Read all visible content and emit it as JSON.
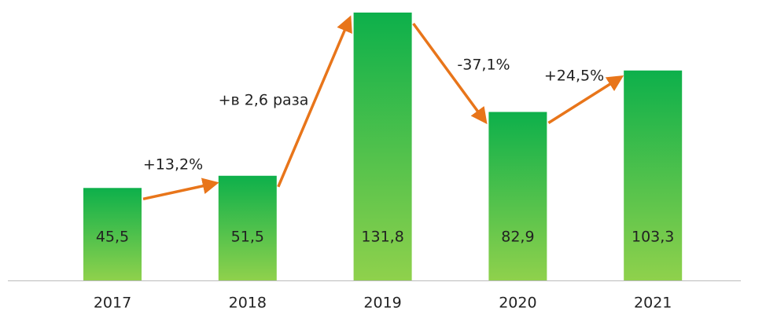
{
  "chart_data": {
    "type": "bar",
    "categories": [
      "2017",
      "2018",
      "2019",
      "2020",
      "2021"
    ],
    "values": [
      45.5,
      51.5,
      131.8,
      82.9,
      103.3
    ],
    "value_labels": [
      "45,5",
      "51,5",
      "131,8",
      "82,9",
      "103,3"
    ],
    "annotations": [
      "+13,2%",
      "+в 2,6 раза",
      "-37,1%",
      "+24,5%"
    ],
    "color": [
      "#0db04b",
      "#8fd14c"
    ],
    "arrow_color": "#e8751a"
  }
}
